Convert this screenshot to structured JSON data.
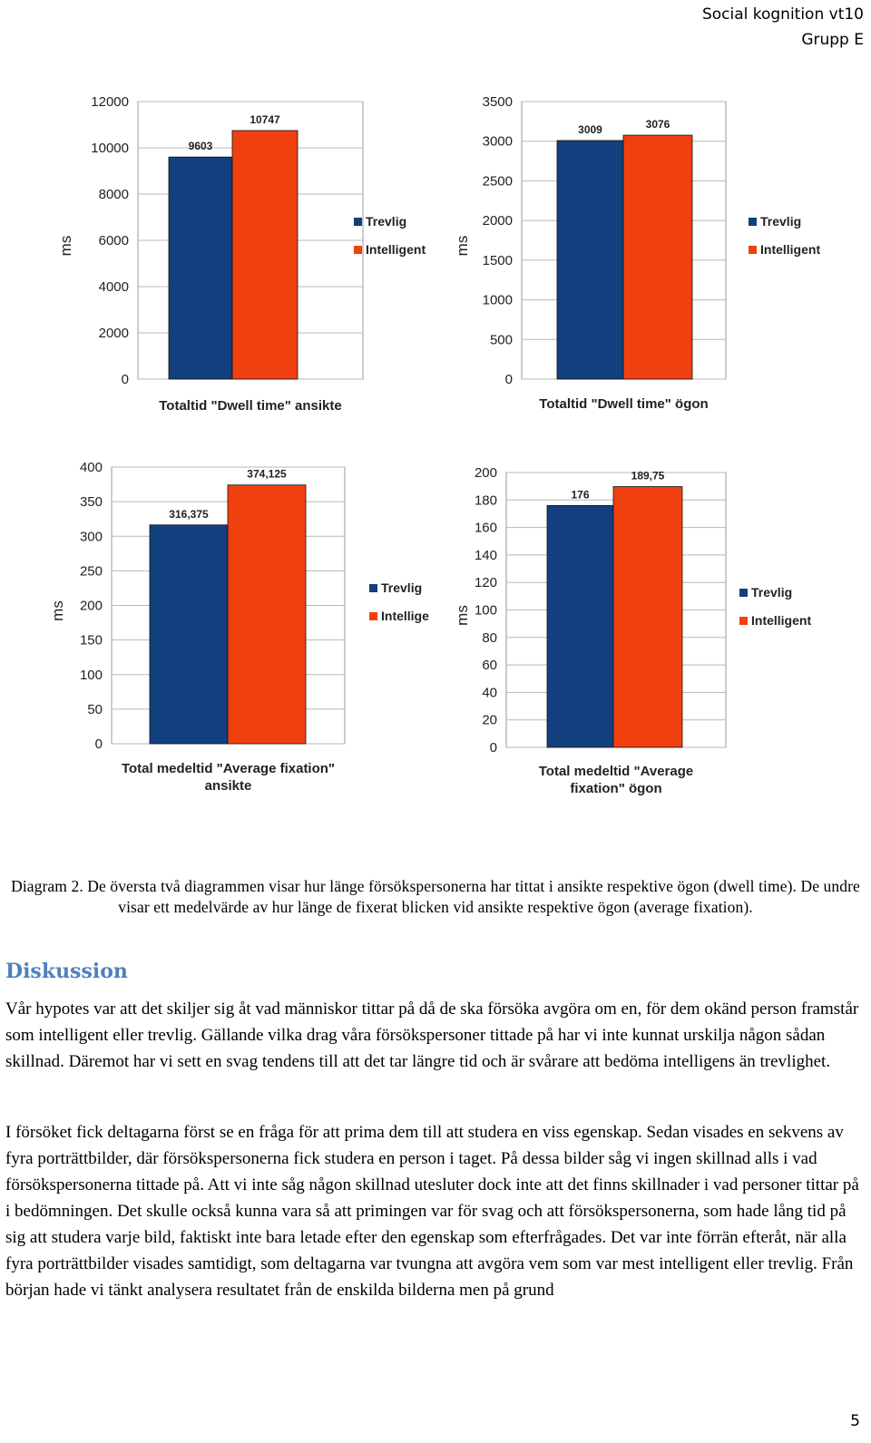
{
  "header": {
    "course": "Social kognition vt10",
    "group": "Grupp E"
  },
  "colors": {
    "trevlig": "#123f7e",
    "intelligent": "#f1400f",
    "gridline": "#b8b8b8",
    "heading": "#4f81bd"
  },
  "chart_data": [
    {
      "type": "bar",
      "categories": [
        "Totaltid \"Dwell time\" ansikte"
      ],
      "xlabel": "Totaltid \"Dwell time\" ansikte",
      "ylabel": "ms",
      "ylim": [
        0,
        12000
      ],
      "yticks": [
        0,
        2000,
        4000,
        6000,
        8000,
        10000,
        12000
      ],
      "series": [
        {
          "name": "Trevlig",
          "values": [
            9603
          ],
          "labels": [
            "9603"
          ]
        },
        {
          "name": "Intelligent",
          "values": [
            10747
          ],
          "labels": [
            "10747"
          ]
        }
      ],
      "grid": true,
      "legend": "right"
    },
    {
      "type": "bar",
      "categories": [
        "Totaltid \"Dwell time\" ögon"
      ],
      "xlabel": "Totaltid \"Dwell time\" ögon",
      "ylabel": "ms",
      "ylim": [
        0,
        3500
      ],
      "yticks": [
        0,
        500,
        1000,
        1500,
        2000,
        2500,
        3000,
        3500
      ],
      "series": [
        {
          "name": "Trevlig",
          "values": [
            3009
          ],
          "labels": [
            "3009"
          ]
        },
        {
          "name": "Intelligent",
          "values": [
            3076
          ],
          "labels": [
            "3076"
          ]
        }
      ],
      "grid": true,
      "legend": "right"
    },
    {
      "type": "bar",
      "categories": [
        "Total medeltid \"Average fixation\" ansikte"
      ],
      "xlabel": [
        "Total medeltid \"Average fixation\"",
        "ansikte"
      ],
      "ylabel": "ms",
      "ylim": [
        0,
        400
      ],
      "yticks": [
        0,
        50,
        100,
        150,
        200,
        250,
        300,
        350,
        400
      ],
      "series": [
        {
          "name": "Trevlig",
          "values": [
            316.375
          ],
          "labels": [
            "316,375"
          ]
        },
        {
          "name": "Intelligent",
          "values": [
            374.125
          ],
          "labels": [
            "374,125"
          ],
          "legend_text": "Intellige"
        }
      ],
      "grid": true,
      "legend": "right"
    },
    {
      "type": "bar",
      "categories": [
        "Total medeltid \"Average fixation\" ögon"
      ],
      "xlabel": [
        "Total medeltid \"Average",
        "fixation\" ögon"
      ],
      "ylabel": "ms",
      "ylim": [
        0,
        200
      ],
      "yticks": [
        0,
        20,
        40,
        60,
        80,
        100,
        120,
        140,
        160,
        180,
        200
      ],
      "series": [
        {
          "name": "Trevlig",
          "values": [
            176
          ],
          "labels": [
            "176"
          ]
        },
        {
          "name": "Intelligent",
          "values": [
            189.75
          ],
          "labels": [
            "189,75"
          ]
        }
      ],
      "grid": true,
      "legend": "right"
    }
  ],
  "caption": "Diagram 2. De översta två diagrammen visar hur länge försökspersonerna har tittat i ansikte respektive ögon (dwell time). De undre visar ett medelvärde av hur länge de fixerat blicken vid ansikte respektive ögon (average fixation).",
  "heading": "Diskussion",
  "paragraphs": [
    "Vår hypotes var att det skiljer sig åt vad människor tittar på då de ska försöka avgöra om en, för dem okänd person framstår som intelligent eller trevlig. Gällande vilka drag våra försökspersoner tittade på har vi inte kunnat urskilja någon sådan skillnad. Däremot har vi sett en svag tendens till att det tar längre tid och är svårare att bedöma intelligens än trevlighet.",
    "I försöket fick deltagarna först se en fråga för att prima dem till att studera en viss egenskap. Sedan visades en sekvens av fyra porträttbilder, där försökspersonerna fick studera en person i taget. På dessa bilder såg vi ingen skillnad alls i vad försökspersonerna tittade på. Att vi inte såg någon skillnad utesluter dock inte att det finns skillnader i vad personer tittar på i bedömningen.  Det skulle också kunna vara så att primingen var för svag och att försökspersonerna, som hade lång tid på sig att studera varje bild, faktiskt inte bara letade efter den egenskap som efterfrågades. Det var inte förrän efteråt, när alla fyra porträttbilder visades samtidigt, som deltagarna var tvungna att avgöra vem som var mest intelligent eller trevlig. Från början hade vi tänkt analysera resultatet från de enskilda bilderna men på grund"
  ],
  "page_number": "5"
}
